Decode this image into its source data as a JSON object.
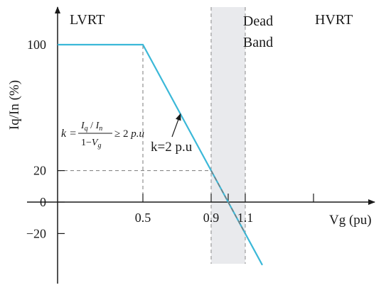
{
  "chart_data": {
    "type": "line",
    "xlabel": "Vg (pu)",
    "ylabel": "Iq/In (%)",
    "x_ticks": [
      0.5,
      0.9,
      1.1
    ],
    "x_tick_labels": [
      "0.5",
      "0.9",
      "1.1"
    ],
    "y_ticks": [
      100,
      20,
      0,
      -20
    ],
    "y_tick_labels": [
      "100",
      "20",
      "0",
      "−20"
    ],
    "xlim": [
      0,
      1.6
    ],
    "ylim": [
      -40,
      125
    ],
    "regions": [
      {
        "label": "LVRT"
      },
      {
        "label_lines": [
          "Dead",
          "Band"
        ],
        "x_range": [
          0.9,
          1.1
        ]
      },
      {
        "label": "HVRT"
      }
    ],
    "series": [
      {
        "x": [
          0,
          0.5,
          0.9,
          1.2
        ],
        "y": [
          100,
          100,
          20,
          -40
        ]
      }
    ],
    "dashed_extension": {
      "x": [
        0.9,
        1.1
      ],
      "y": [
        20,
        -20
      ]
    },
    "guide_lines": [
      {
        "from": [
          0,
          100
        ],
        "to": [
          0.5,
          100
        ]
      },
      {
        "from": [
          0.5,
          0
        ],
        "to": [
          0.5,
          100
        ]
      },
      {
        "from": [
          0,
          20
        ],
        "to": [
          0.9,
          20
        ]
      }
    ],
    "annotation": {
      "text": "k=2 p.u",
      "arrow_to": [
        0.72,
        56
      ]
    },
    "formula": {
      "lhs": "k =",
      "num_I": "I",
      "num_q": "q",
      "num_slash": " / ",
      "num_In": "I",
      "num_n": "n",
      "den_1": "1−",
      "den_V": "V",
      "den_g": "g",
      "rhs": "≥ 2 ",
      "rhs_unit": "p.u"
    },
    "colors": {
      "line": "#3bb8d8",
      "band": "#e9eaed",
      "axis": "#1a1a1a",
      "guide": "#7a7a7a"
    }
  }
}
